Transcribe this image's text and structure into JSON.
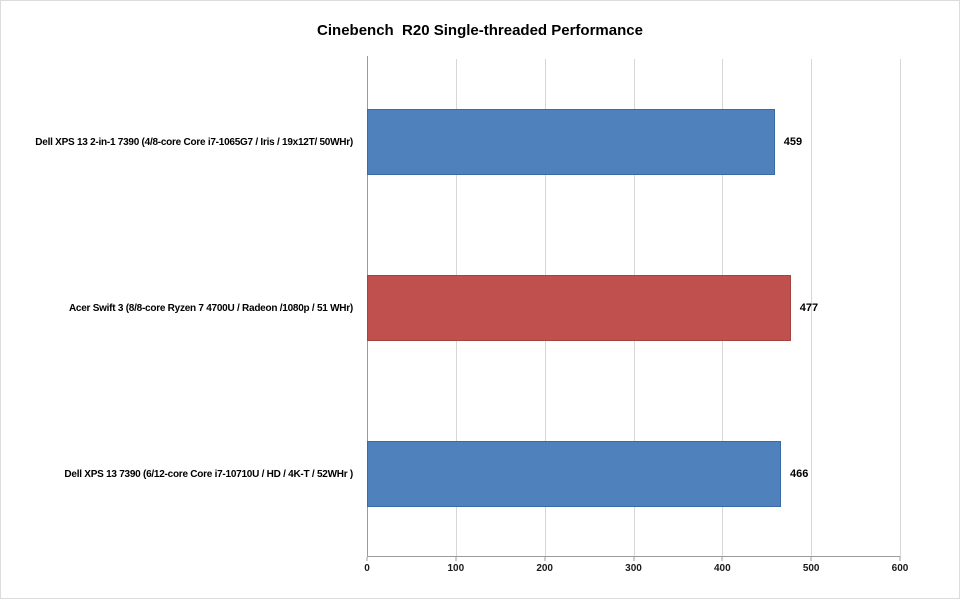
{
  "chart_data": {
    "type": "bar",
    "orientation": "horizontal",
    "title": "Cinebench  R20 Single-threaded Performance",
    "categories": [
      "Dell XPS 13 2-in-1 7390 (4/8-core Core i7-1065G7 / Iris / 19x12T/ 50WHr)",
      "Acer Swift 3 (8/8-core Ryzen 7 4700U / Radeon /1080p / 51 WHr)",
      "Dell XPS 13 7390 (6/12-core Core i7-10710U / HD / 4K-T / 52WHr )"
    ],
    "values": [
      459,
      477,
      466
    ],
    "bar_colors": [
      "#4F81BD",
      "#C0504D",
      "#4F81BD"
    ],
    "bar_border_colors": [
      "#3A6AA5",
      "#A4443F",
      "#3A6AA5"
    ],
    "xlabel": "",
    "ylabel": "",
    "xlim": [
      0,
      600
    ],
    "xticks": [
      0,
      100,
      200,
      300,
      400,
      500,
      600
    ],
    "grid": true,
    "legend": false,
    "background_color": "#ffffff",
    "gridline_color": "#d6d6d6",
    "axis_color": "#9b9b9b"
  }
}
